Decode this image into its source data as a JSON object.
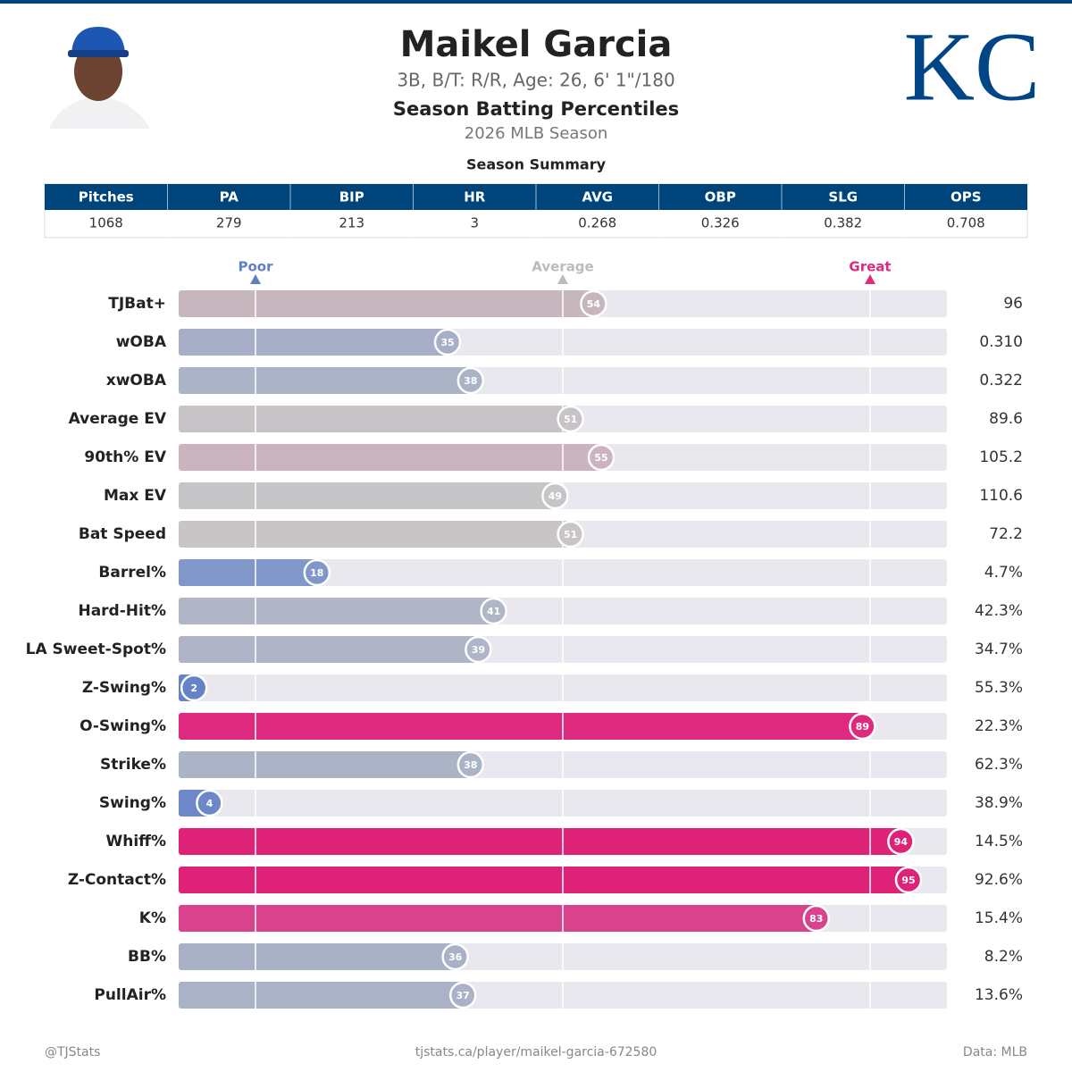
{
  "header": {
    "name": "Maikel Garcia",
    "bio": "3B, B/T: R/R, Age: 26, 6' 1\"/180",
    "title": "Season Batting Percentiles",
    "season": "2026 MLB Season",
    "logo": "KC"
  },
  "summary": {
    "title": "Season Summary",
    "columns": [
      "Pitches",
      "PA",
      "BIP",
      "HR",
      "AVG",
      "OBP",
      "SLG",
      "OPS"
    ],
    "values": [
      "1068",
      "279",
      "213",
      "3",
      "0.268",
      "0.326",
      "0.382",
      "0.708"
    ]
  },
  "chart_data": {
    "type": "bar",
    "categories": [
      "TJBat+",
      "wOBA",
      "xwOBA",
      "Average EV",
      "90th% EV",
      "Max EV",
      "Bat Speed",
      "Barrel%",
      "Hard-Hit%",
      "LA Sweet-Spot%",
      "Z-Swing%",
      "O-Swing%",
      "Strike%",
      "Swing%",
      "Whiff%",
      "Z-Contact%",
      "K%",
      "BB%",
      "PullAir%"
    ],
    "values": [
      54,
      35,
      38,
      51,
      55,
      49,
      51,
      18,
      41,
      39,
      2,
      89,
      38,
      4,
      94,
      95,
      83,
      36,
      37
    ],
    "colors": [
      "#c8b6bf",
      "#a6afc7",
      "#abb3c7",
      "#c8c3c6",
      "#cbb3c0",
      "#c6c6c9",
      "#c9c4c6",
      "#8098c9",
      "#b0b6c6",
      "#afb5c6",
      "#6483c9",
      "#dd2a7f",
      "#abb3c7",
      "#6d88c9",
      "#dd2277",
      "#dd2277",
      "#d9428c",
      "#a9b1c7",
      "#aab2c7"
    ],
    "stat_labels": [
      "96",
      "0.310",
      "0.322",
      "89.6",
      "105.2",
      "110.6",
      "72.2",
      "4.7%",
      "42.3%",
      "34.7%",
      "55.3%",
      "22.3%",
      "62.3%",
      "38.9%",
      "14.5%",
      "92.6%",
      "15.4%",
      "8.2%",
      "13.6%"
    ],
    "xlim": [
      0,
      100
    ],
    "markers": [
      {
        "value": 10,
        "label": "Poor",
        "color": "#5f7fc4"
      },
      {
        "value": 50,
        "label": "Average",
        "color": "#bbbbbb"
      },
      {
        "value": 90,
        "label": "Great",
        "color": "#dd2a7f"
      }
    ]
  },
  "footer": {
    "left": "@TJStats",
    "center": "tjstats.ca/player/maikel-garcia-672580",
    "right": "Data: MLB"
  }
}
